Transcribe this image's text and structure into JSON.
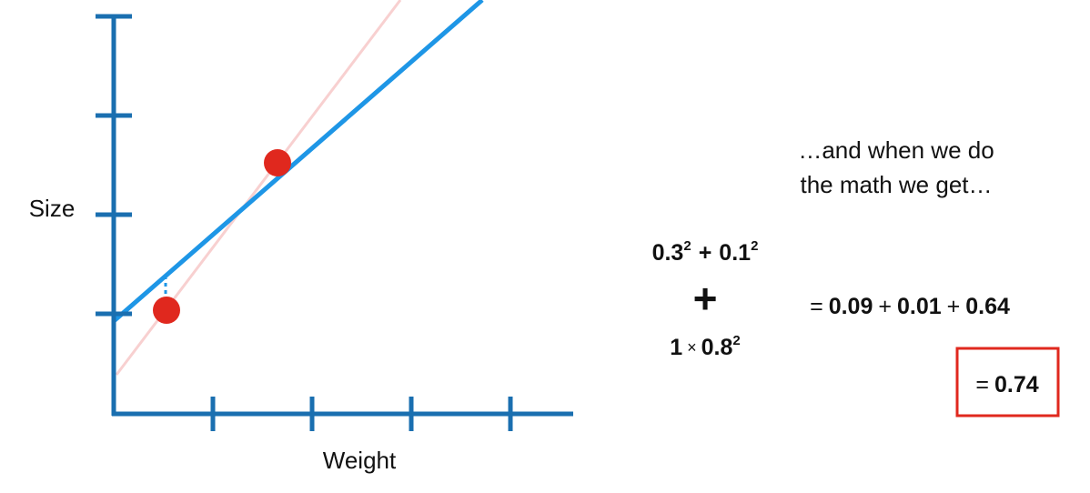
{
  "graph": {
    "y_label": "Size",
    "x_label": "Weight"
  },
  "caption": [
    "…and when we do",
    "the math we get…"
  ],
  "formula": {
    "term1": {
      "a": "0.3",
      "a_exp": "2",
      "op": "+",
      "b": "0.1",
      "b_exp": "2"
    },
    "plus": "+",
    "term2": {
      "lambda": "1",
      "times": "×",
      "slope": "0.8",
      "slope_exp": "2"
    },
    "expansion": {
      "eq": "=",
      "v1": "0.09",
      "op1": "+",
      "v2": "0.01",
      "op2": "+",
      "v3": "0.64"
    },
    "result": {
      "eq": "=",
      "value": "0.74"
    }
  }
}
